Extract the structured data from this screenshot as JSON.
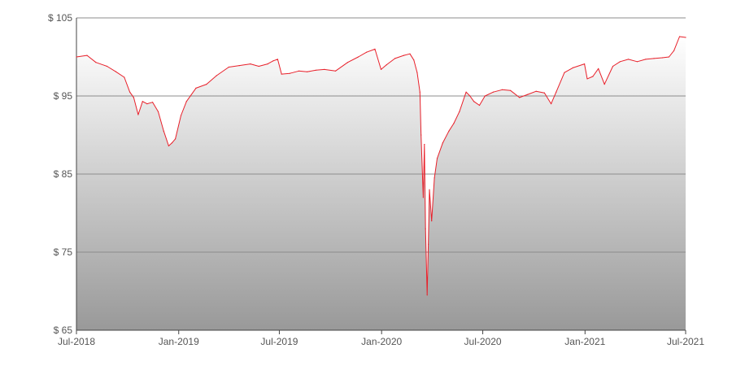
{
  "chart_data": {
    "type": "area",
    "title": "",
    "xlabel": "",
    "ylabel": "",
    "ylim": [
      65,
      105
    ],
    "xlim": [
      "2018-07-01",
      "2021-07-01"
    ],
    "y_ticks": [
      65,
      75,
      85,
      95,
      105
    ],
    "y_tick_labels": [
      "$ 65",
      "$ 75",
      "$ 85",
      "$ 95",
      "$ 105"
    ],
    "x_ticks": [
      "2018-07-01",
      "2019-01-01",
      "2019-07-01",
      "2020-01-01",
      "2020-07-01",
      "2021-01-01",
      "2021-07-01"
    ],
    "x_tick_labels": [
      "Jul-2018",
      "Jan-2019",
      "Jul-2019",
      "Jan-2020",
      "Jul-2020",
      "Jan-2021",
      "Jul-2021"
    ],
    "grid": "horizontal",
    "colors": {
      "line": "#e8202a",
      "fill_top": "#ffffff",
      "fill_bottom": "#999999",
      "grid": "#8c8c8c",
      "axis": "#444444"
    },
    "series": [
      {
        "x": [
          "2018-07-01",
          "2018-07-20",
          "2018-08-05",
          "2018-08-25",
          "2018-09-10",
          "2018-09-25",
          "2018-10-05",
          "2018-10-12",
          "2018-10-20",
          "2018-10-28",
          "2018-11-05",
          "2018-11-15",
          "2018-11-25",
          "2018-12-05",
          "2018-12-14",
          "2018-12-20",
          "2018-12-26",
          "2019-01-05",
          "2019-01-15",
          "2019-02-01",
          "2019-02-20",
          "2019-03-10",
          "2019-04-01",
          "2019-04-20",
          "2019-05-10",
          "2019-05-25",
          "2019-06-10",
          "2019-06-20",
          "2019-06-28",
          "2019-07-05",
          "2019-07-20",
          "2019-08-05",
          "2019-08-20",
          "2019-09-05",
          "2019-09-20",
          "2019-10-10",
          "2019-11-01",
          "2019-11-20",
          "2019-12-05",
          "2019-12-20",
          "2019-12-31",
          "2020-01-10",
          "2020-01-25",
          "2020-02-10",
          "2020-02-21",
          "2020-02-28",
          "2020-03-05",
          "2020-03-10",
          "2020-03-12",
          "2020-03-16",
          "2020-03-18",
          "2020-03-20",
          "2020-03-23",
          "2020-03-25",
          "2020-03-27",
          "2020-03-31",
          "2020-04-05",
          "2020-04-10",
          "2020-04-20",
          "2020-05-01",
          "2020-05-10",
          "2020-05-20",
          "2020-06-01",
          "2020-06-08",
          "2020-06-15",
          "2020-06-25",
          "2020-07-05",
          "2020-07-20",
          "2020-08-05",
          "2020-08-20",
          "2020-09-05",
          "2020-09-20",
          "2020-10-05",
          "2020-10-20",
          "2020-11-01",
          "2020-11-10",
          "2020-11-25",
          "2020-12-10",
          "2020-12-31",
          "2021-01-05",
          "2021-01-15",
          "2021-01-25",
          "2021-02-05",
          "2021-02-20",
          "2021-03-05",
          "2021-03-20",
          "2021-04-05",
          "2021-04-20",
          "2021-05-05",
          "2021-05-20",
          "2021-06-01",
          "2021-06-10",
          "2021-06-20",
          "2021-07-01"
        ],
        "values": [
          100.0,
          100.2,
          99.3,
          98.8,
          98.1,
          97.4,
          95.5,
          94.8,
          92.6,
          94.3,
          94.0,
          94.2,
          93.0,
          90.5,
          88.6,
          89.0,
          89.5,
          92.5,
          94.3,
          96.0,
          96.5,
          97.6,
          98.7,
          98.9,
          99.1,
          98.8,
          99.1,
          99.5,
          99.7,
          97.8,
          97.9,
          98.2,
          98.1,
          98.3,
          98.4,
          98.2,
          99.3,
          100.0,
          100.6,
          101.0,
          98.4,
          99.0,
          99.8,
          100.2,
          100.4,
          99.6,
          98.0,
          95.5,
          90.0,
          82.0,
          88.8,
          78.0,
          69.5,
          76.0,
          83.0,
          79.0,
          84.5,
          87.0,
          89.0,
          90.5,
          91.5,
          93.0,
          95.5,
          95.0,
          94.3,
          93.8,
          95.0,
          95.5,
          95.8,
          95.7,
          94.8,
          95.2,
          95.6,
          95.4,
          94.0,
          95.5,
          98.0,
          98.6,
          99.1,
          97.2,
          97.5,
          98.5,
          96.5,
          98.8,
          99.4,
          99.7,
          99.4,
          99.7,
          99.8,
          99.9,
          100.0,
          100.8,
          102.6,
          102.5
        ]
      }
    ]
  }
}
